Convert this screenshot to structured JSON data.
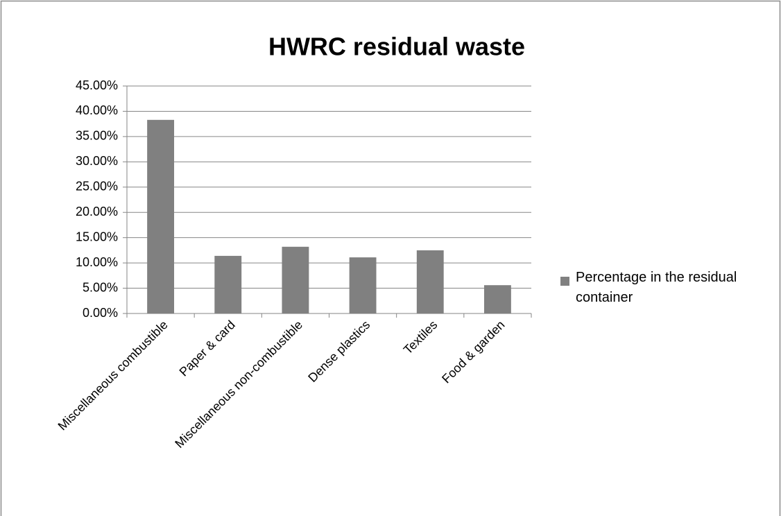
{
  "chart_data": {
    "type": "bar",
    "title": "HWRC residual waste",
    "categories": [
      "Miscellaneous combustible",
      "Paper & card",
      "Miscellaneous non-combustible",
      "Dense plastics",
      "Textiles",
      "Food & garden"
    ],
    "series": [
      {
        "name": "Percentage in the residual container",
        "color": "#808080",
        "values": [
          38.3,
          11.4,
          13.2,
          11.1,
          12.5,
          5.6
        ]
      }
    ],
    "ylim": [
      0,
      45
    ],
    "yticks": [
      {
        "value": 0,
        "label": "0.00%"
      },
      {
        "value": 5,
        "label": "5.00%"
      },
      {
        "value": 10,
        "label": "10.00%"
      },
      {
        "value": 15,
        "label": "15.00%"
      },
      {
        "value": 20,
        "label": "20.00%"
      },
      {
        "value": 25,
        "label": "25.00%"
      },
      {
        "value": 30,
        "label": "30.00%"
      },
      {
        "value": 35,
        "label": "35.00%"
      },
      {
        "value": 40,
        "label": "40.00%"
      },
      {
        "value": 45,
        "label": "45.00%"
      }
    ],
    "grid": true,
    "legend": "right"
  }
}
